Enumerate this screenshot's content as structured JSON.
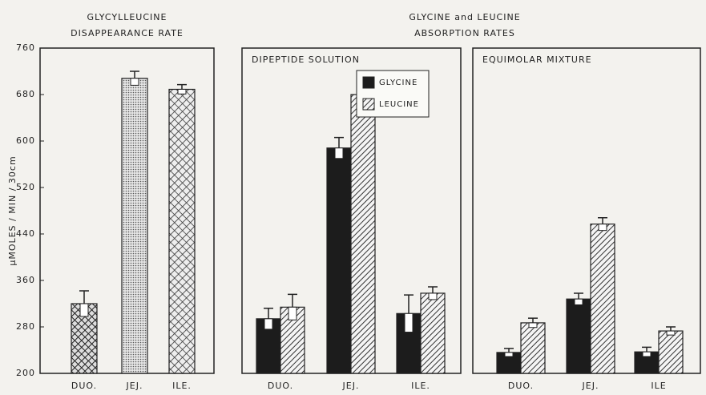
{
  "group_title": [
    "GLYCINE and LEUCINE",
    "ABSORPTION RATES"
  ],
  "chart_data": [
    {
      "type": "bar",
      "title": [
        "GLYCYLLEUCINE",
        "DISAPPEARANCE RATE"
      ],
      "ylabel": "μMOLES / MIN / 30cm",
      "categories": [
        "DUO.",
        "JEJ.",
        "ILE."
      ],
      "values": [
        320,
        708,
        689
      ],
      "errors": [
        22,
        12,
        8
      ],
      "bar_patterns": [
        "grid",
        "dots",
        "cross"
      ],
      "ylim": [
        200,
        760
      ],
      "yticks": [
        200,
        280,
        360,
        440,
        520,
        600,
        680,
        760
      ]
    },
    {
      "type": "grouped-bar",
      "title": [
        "DIPEPTIDE SOLUTION"
      ],
      "categories": [
        "DUO.",
        "JEJ.",
        "ILE."
      ],
      "series": [
        {
          "name": "GLYCINE",
          "color": "#1c1c1c",
          "values": [
            294,
            588,
            303
          ],
          "errors": [
            18,
            18,
            32
          ]
        },
        {
          "name": "LEUCINE",
          "color": "hatch",
          "values": [
            314,
            680,
            338
          ],
          "errors": [
            22,
            15,
            11
          ]
        }
      ],
      "legend": "upper right",
      "ylim": [
        200,
        760
      ]
    },
    {
      "type": "grouped-bar",
      "title": [
        "EQUIMOLAR MIXTURE"
      ],
      "categories": [
        "DUO.",
        "JEJ.",
        "ILE"
      ],
      "series": [
        {
          "name": "GLYCINE",
          "color": "#1c1c1c",
          "values": [
            236,
            328,
            237
          ],
          "errors": [
            7,
            10,
            8
          ]
        },
        {
          "name": "LEUCINE",
          "color": "hatch",
          "values": [
            287,
            457,
            273
          ],
          "errors": [
            8,
            11,
            7
          ]
        }
      ],
      "ylim": [
        200,
        760
      ]
    }
  ]
}
